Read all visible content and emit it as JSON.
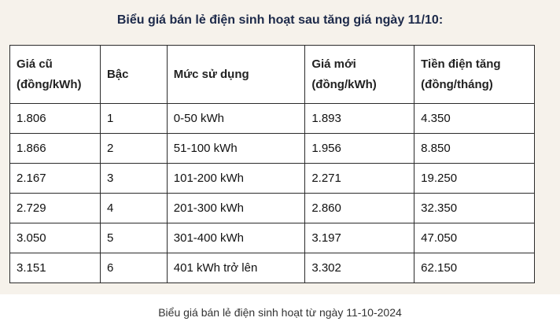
{
  "title": "Biểu giá bán lẻ điện sinh hoạt sau tăng giá ngày 11/10:",
  "table": {
    "headers": [
      "Giá cũ (đồng/kWh)",
      "Bậc",
      "Mức sử dụng",
      "Giá mới (đồng/kWh)",
      "Tiền điện tăng (đồng/tháng)"
    ],
    "rows": [
      [
        "1.806",
        "1",
        "0-50 kWh",
        "1.893",
        "4.350"
      ],
      [
        "1.866",
        "2",
        "51-100 kWh",
        "1.956",
        "8.850"
      ],
      [
        "2.167",
        "3",
        "101-200 kWh",
        "2.271",
        "19.250"
      ],
      [
        "2.729",
        "4",
        "201-300 kWh",
        "2.860",
        "32.350"
      ],
      [
        "3.050",
        "5",
        "301-400 kWh",
        "3.197",
        "47.050"
      ],
      [
        "3.151",
        "6",
        "401 kWh trở lên",
        "3.302",
        "62.150"
      ]
    ]
  },
  "caption": "Biểu giá bán lẻ điện sinh hoạt từ ngày 11-10-2024"
}
